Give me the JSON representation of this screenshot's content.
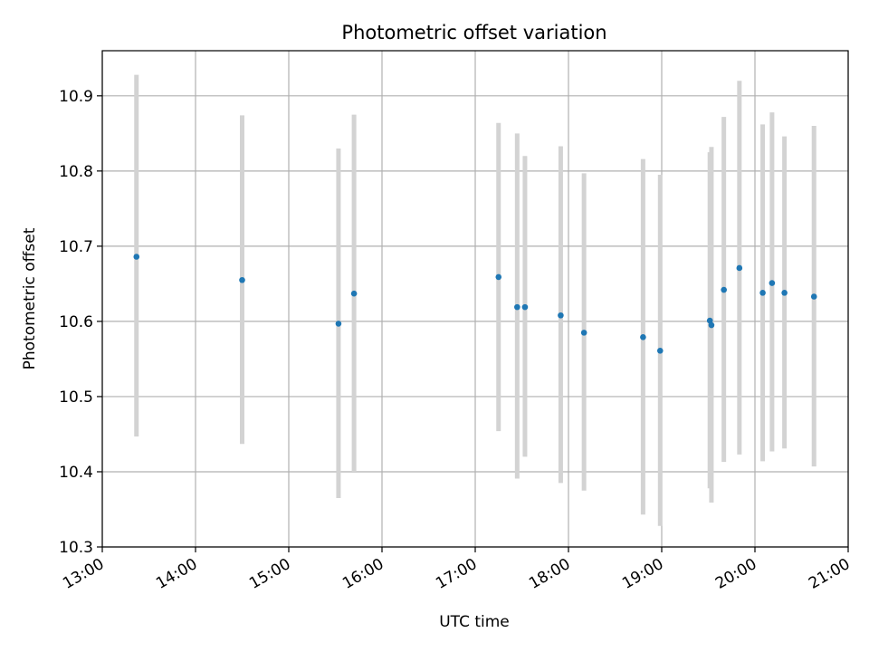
{
  "chart_data": {
    "type": "scatter",
    "title": "Photometric offset variation",
    "xlabel": "UTC time",
    "ylabel": "Photometric offset",
    "xlim": [
      "13:00",
      "21:00"
    ],
    "ylim": [
      10.3,
      10.96
    ],
    "grid": true,
    "x_ticks": [
      "13:00",
      "14:00",
      "15:00",
      "16:00",
      "17:00",
      "18:00",
      "19:00",
      "20:00",
      "21:00"
    ],
    "y_ticks": [
      "10.3",
      "10.4",
      "10.5",
      "10.6",
      "10.7",
      "10.8",
      "10.9"
    ],
    "colors": {
      "points": "#1f77b4",
      "errorbars": "#d3d3d3",
      "grid": "#b0b0b0"
    },
    "points": [
      {
        "x": "13:22",
        "y": 10.686,
        "ylo": 10.447,
        "yhi": 10.928
      },
      {
        "x": "14:30",
        "y": 10.655,
        "ylo": 10.437,
        "yhi": 10.874
      },
      {
        "x": "15:32",
        "y": 10.597,
        "ylo": 10.365,
        "yhi": 10.83
      },
      {
        "x": "15:42",
        "y": 10.637,
        "ylo": 10.4,
        "yhi": 10.875
      },
      {
        "x": "17:15",
        "y": 10.659,
        "ylo": 10.454,
        "yhi": 10.864
      },
      {
        "x": "17:27",
        "y": 10.619,
        "ylo": 10.391,
        "yhi": 10.85
      },
      {
        "x": "17:32",
        "y": 10.619,
        "ylo": 10.42,
        "yhi": 10.82
      },
      {
        "x": "17:55",
        "y": 10.608,
        "ylo": 10.385,
        "yhi": 10.833
      },
      {
        "x": "18:10",
        "y": 10.585,
        "ylo": 10.375,
        "yhi": 10.797
      },
      {
        "x": "18:48",
        "y": 10.579,
        "ylo": 10.343,
        "yhi": 10.816
      },
      {
        "x": "18:59",
        "y": 10.561,
        "ylo": 10.328,
        "yhi": 10.795
      },
      {
        "x": "19:31",
        "y": 10.601,
        "ylo": 10.378,
        "yhi": 10.825
      },
      {
        "x": "19:32",
        "y": 10.595,
        "ylo": 10.359,
        "yhi": 10.832
      },
      {
        "x": "19:40",
        "y": 10.642,
        "ylo": 10.413,
        "yhi": 10.872
      },
      {
        "x": "19:50",
        "y": 10.671,
        "ylo": 10.423,
        "yhi": 10.92
      },
      {
        "x": "20:05",
        "y": 10.638,
        "ylo": 10.414,
        "yhi": 10.862
      },
      {
        "x": "20:11",
        "y": 10.651,
        "ylo": 10.427,
        "yhi": 10.878
      },
      {
        "x": "20:19",
        "y": 10.638,
        "ylo": 10.431,
        "yhi": 10.846
      },
      {
        "x": "20:38",
        "y": 10.633,
        "ylo": 10.407,
        "yhi": 10.86
      }
    ]
  }
}
